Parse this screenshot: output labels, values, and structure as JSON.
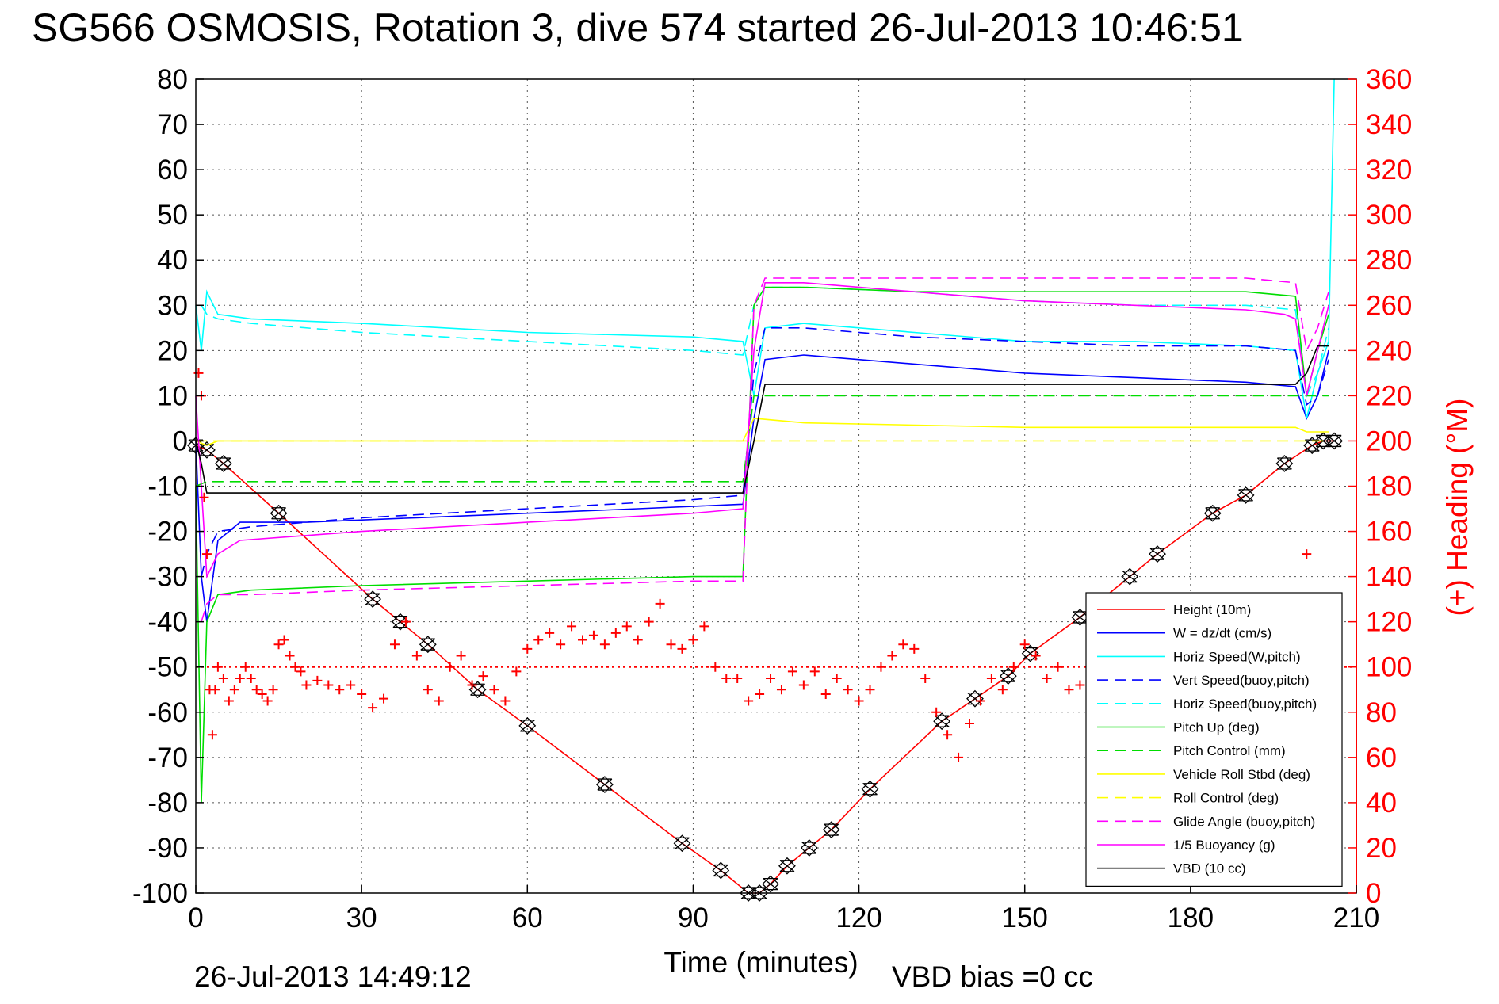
{
  "title": "SG566 OSMOSIS, Rotation 3, dive 574 started 26-Jul-2013 10:46:51",
  "footer": {
    "datetime": "26-Jul-2013 14:49:12",
    "vbd_bias": "VBD bias =0 cc"
  },
  "chart_data": {
    "type": "line",
    "title": "SG566 OSMOSIS, Rotation 3, dive 574 started 26-Jul-2013 10:46:51",
    "xlabel": "Time (minutes)",
    "ylabel": "",
    "y2label": "(+) Heading (°M)",
    "xlim": [
      0,
      210
    ],
    "ylim": [
      -100,
      80
    ],
    "y2lim": [
      0,
      360
    ],
    "grid": true,
    "legend_position": "bottom-right",
    "x_ticks": [
      "0",
      "30",
      "60",
      "90",
      "120",
      "150",
      "180",
      "210"
    ],
    "y_ticks": [
      "80",
      "70",
      "60",
      "50",
      "40",
      "30",
      "20",
      "10",
      "0",
      "-10",
      "-20",
      "-30",
      "-40",
      "-50",
      "-60",
      "-70",
      "-80",
      "-90",
      "-100"
    ],
    "y2_ticks": [
      "360",
      "340",
      "320",
      "300",
      "280",
      "260",
      "240",
      "220",
      "200",
      "180",
      "160",
      "140",
      "120",
      "100",
      "80",
      "60",
      "40",
      "20",
      "0"
    ],
    "series": [
      {
        "name": "Height (10m)",
        "color": "#ff0000",
        "style": "solid",
        "marker": "diamond-x",
        "x": [
          0,
          2,
          5,
          15,
          32,
          37,
          42,
          51,
          60,
          74,
          88,
          95,
          100,
          102,
          104,
          107,
          111,
          115,
          122,
          135,
          141,
          147,
          151,
          160,
          169,
          174,
          184,
          190,
          197,
          202,
          204,
          206
        ],
        "y": [
          -1,
          -2,
          -5,
          -16,
          -35,
          -40,
          -45,
          -55,
          -63,
          -76,
          -89,
          -95,
          -100,
          -100,
          -98,
          -94,
          -90,
          -86,
          -77,
          -62,
          -57,
          -52,
          -47,
          -39,
          -30,
          -25,
          -16,
          -12,
          -5,
          -1,
          0,
          0
        ]
      },
      {
        "name": "W = dz/dt (cm/s)",
        "color": "#0000ff",
        "style": "solid",
        "x": [
          0,
          1,
          2,
          4,
          8,
          20,
          40,
          60,
          80,
          99,
          101,
          103,
          110,
          130,
          150,
          170,
          190,
          199,
          201,
          203,
          205
        ],
        "y": [
          0,
          -30,
          -40,
          -22,
          -18,
          -18,
          -17,
          -16,
          -15,
          -14,
          5,
          18,
          19,
          17,
          15,
          14,
          13,
          12,
          5,
          10,
          20
        ]
      },
      {
        "name": "Horiz Speed(W,pitch)",
        "color": "#00ffff",
        "style": "solid",
        "x": [
          0,
          1,
          2,
          4,
          10,
          30,
          60,
          90,
          99,
          101,
          103,
          110,
          130,
          150,
          170,
          190,
          199,
          201,
          203,
          205,
          206
        ],
        "y": [
          30,
          20,
          33,
          28,
          27,
          26,
          24,
          23,
          22,
          10,
          25,
          26,
          24,
          22,
          22,
          21,
          20,
          5,
          15,
          22,
          80
        ]
      },
      {
        "name": "Vert Speed(buoy,pitch)",
        "color": "#0000ff",
        "style": "dashed",
        "x": [
          1,
          2,
          4,
          10,
          30,
          60,
          90,
          99,
          101,
          103,
          110,
          130,
          150,
          170,
          190,
          199,
          201,
          203,
          205
        ],
        "y": [
          -30,
          -25,
          -20,
          -19,
          -17,
          -15,
          -13,
          -12,
          15,
          25,
          25,
          23,
          22,
          21,
          21,
          20,
          8,
          10,
          18
        ]
      },
      {
        "name": "Horiz Speed(buoy,pitch)",
        "color": "#00ffff",
        "style": "dashed",
        "x": [
          1,
          2,
          4,
          10,
          30,
          60,
          90,
          99,
          101,
          103,
          110,
          130,
          150,
          170,
          190,
          199,
          201,
          203,
          205
        ],
        "y": [
          30,
          28,
          27,
          26,
          24,
          22,
          20,
          19,
          30,
          34,
          34,
          33,
          31,
          30,
          30,
          29,
          10,
          15,
          25
        ]
      },
      {
        "name": "Pitch Up (deg)",
        "color": "#00dd00",
        "style": "solid",
        "x": [
          0,
          1,
          2,
          4,
          10,
          30,
          60,
          90,
          99,
          101,
          103,
          110,
          130,
          150,
          170,
          190,
          199,
          201,
          203,
          205
        ],
        "y": [
          -10,
          -80,
          -40,
          -34,
          -33,
          -32,
          -31,
          -30,
          -30,
          30,
          34,
          34,
          33,
          33,
          33,
          33,
          32,
          10,
          20,
          28
        ]
      },
      {
        "name": "Pitch Control (mm)",
        "color": "#00dd00",
        "style": "dashed",
        "x": [
          0,
          2,
          4,
          99,
          101,
          199,
          201,
          205
        ],
        "y": [
          -10,
          -9,
          -9,
          -9,
          10,
          10,
          10,
          10
        ]
      },
      {
        "name": "Vehicle Roll Stbd (deg)",
        "color": "#ffff00",
        "style": "solid",
        "x": [
          0,
          2,
          4,
          99,
          101,
          110,
          150,
          199,
          201,
          205
        ],
        "y": [
          0,
          -1,
          0,
          0,
          5,
          4,
          3,
          3,
          2,
          2
        ]
      },
      {
        "name": "Roll Control (deg)",
        "color": "#ffff00",
        "style": "dashed",
        "x": [
          0,
          2,
          4,
          99,
          101,
          199,
          201,
          205
        ],
        "y": [
          0,
          0,
          0,
          0,
          0,
          0,
          0,
          0
        ]
      },
      {
        "name": "Glide Angle (buoy,pitch)",
        "color": "#ff00ff",
        "style": "dashed",
        "x": [
          1,
          2,
          4,
          10,
          30,
          60,
          90,
          99,
          101,
          103,
          110,
          130,
          150,
          170,
          190,
          199,
          201,
          203,
          205
        ],
        "y": [
          -40,
          -36,
          -34,
          -34,
          -33,
          -32,
          -31,
          -31,
          30,
          36,
          36,
          36,
          36,
          36,
          36,
          35,
          20,
          25,
          33
        ]
      },
      {
        "name": "1/5 Buoyancy (g)",
        "color": "#ff00ff",
        "style": "solid",
        "x": [
          0,
          2,
          4,
          8,
          30,
          60,
          90,
          99,
          101,
          103,
          110,
          130,
          150,
          170,
          190,
          197,
          199,
          201,
          203,
          205
        ],
        "y": [
          10,
          -30,
          -25,
          -22,
          -20,
          -18,
          -16,
          -15,
          20,
          35,
          35,
          33,
          31,
          30,
          29,
          28,
          27,
          10,
          20,
          30
        ]
      },
      {
        "name": "VBD (10 cc)",
        "color": "#000000",
        "style": "solid",
        "x": [
          0,
          1,
          2,
          99,
          101,
          103,
          110,
          199,
          201,
          203,
          205
        ],
        "y": [
          0,
          -5,
          -11.5,
          -11.5,
          0,
          12.5,
          12.5,
          12.5,
          15,
          21,
          21
        ]
      },
      {
        "name": "",
        "axis": "right",
        "color": "#ff0000",
        "style": "markers-plus",
        "x": [
          0.5,
          1,
          1.5,
          2,
          2.5,
          3,
          3.5,
          4,
          5,
          6,
          7,
          8,
          9,
          10,
          11,
          12,
          13,
          14,
          15,
          16,
          17,
          18,
          19,
          20,
          22,
          24,
          26,
          28,
          30,
          32,
          34,
          36,
          38,
          40,
          42,
          44,
          46,
          48,
          50,
          52,
          54,
          56,
          58,
          60,
          62,
          64,
          66,
          68,
          70,
          72,
          74,
          76,
          78,
          80,
          82,
          84,
          86,
          88,
          90,
          92,
          94,
          96,
          98,
          100,
          102,
          104,
          106,
          108,
          110,
          112,
          114,
          116,
          118,
          120,
          122,
          124,
          126,
          128,
          130,
          132,
          134,
          136,
          138,
          140,
          142,
          144,
          146,
          148,
          150,
          152,
          154,
          156,
          158,
          160,
          162,
          164,
          166,
          168,
          170,
          172,
          174,
          176,
          178,
          180,
          182,
          184,
          186,
          188,
          190,
          192,
          194,
          196,
          198,
          200,
          201
        ],
        "y": [
          230,
          220,
          175,
          150,
          90,
          70,
          90,
          100,
          95,
          85,
          90,
          95,
          100,
          95,
          90,
          88,
          85,
          90,
          110,
          112,
          105,
          100,
          98,
          92,
          94,
          92,
          90,
          92,
          88,
          82,
          86,
          110,
          120,
          105,
          90,
          85,
          100,
          105,
          92,
          96,
          90,
          85,
          98,
          108,
          112,
          115,
          110,
          118,
          112,
          114,
          110,
          115,
          118,
          112,
          120,
          128,
          110,
          108,
          112,
          118,
          100,
          95,
          95,
          85,
          88,
          95,
          90,
          98,
          92,
          98,
          88,
          95,
          90,
          85,
          90,
          100,
          105,
          110,
          108,
          95,
          80,
          70,
          60,
          75,
          85,
          95,
          90,
          100,
          110,
          105,
          95,
          100,
          90,
          92,
          95,
          92,
          88,
          90,
          98,
          100,
          102,
          92,
          100,
          105,
          98,
          90,
          95,
          100,
          98,
          92,
          100,
          95,
          110,
          120,
          150
        ]
      }
    ],
    "heading_reference": {
      "value": 100,
      "axis": "right",
      "color": "#ff0000",
      "style": "dotted"
    }
  },
  "legend": [
    {
      "label": "Height (10m)",
      "color": "#ff0000",
      "style": "solid"
    },
    {
      "label": "W = dz/dt (cm/s)",
      "color": "#0000ff",
      "style": "solid"
    },
    {
      "label": "Horiz Speed(W,pitch)",
      "color": "#00ffff",
      "style": "solid"
    },
    {
      "label": "Vert Speed(buoy,pitch)",
      "color": "#0000ff",
      "style": "dashed"
    },
    {
      "label": "Horiz Speed(buoy,pitch)",
      "color": "#00ffff",
      "style": "dashed"
    },
    {
      "label": "Pitch Up (deg)",
      "color": "#00dd00",
      "style": "solid"
    },
    {
      "label": "Pitch Control (mm)",
      "color": "#00dd00",
      "style": "dashed"
    },
    {
      "label": "Vehicle Roll Stbd (deg)",
      "color": "#ffff00",
      "style": "solid"
    },
    {
      "label": "Roll Control (deg)",
      "color": "#ffff00",
      "style": "dashed"
    },
    {
      "label": "Glide Angle (buoy,pitch)",
      "color": "#ff00ff",
      "style": "dashed"
    },
    {
      "label": "1/5 Buoyancy (g)",
      "color": "#ff00ff",
      "style": "solid"
    },
    {
      "label": "VBD (10 cc)",
      "color": "#000000",
      "style": "solid"
    }
  ]
}
